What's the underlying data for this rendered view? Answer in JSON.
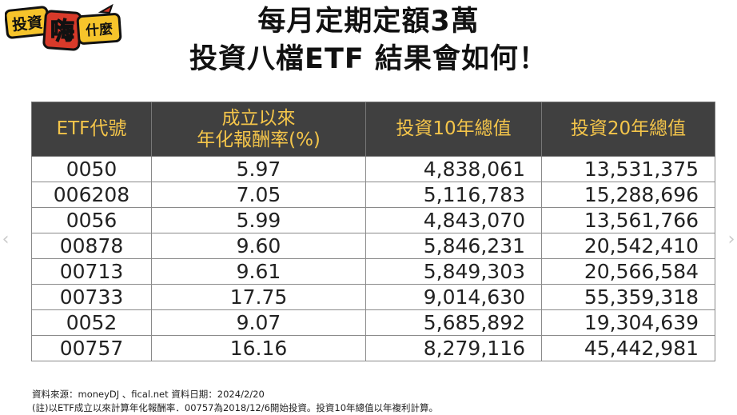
{
  "logo": {
    "line1": "投資",
    "line2": "嗨",
    "line3": "什麼"
  },
  "title": {
    "line1": "每月定期定額3萬",
    "line2": "投資八檔ETF 結果會如何！"
  },
  "table": {
    "headers": [
      "ETF代號",
      "成立以來\n年化報酬率(%)",
      "投資10年總值",
      "投資20年總值"
    ],
    "rows": [
      {
        "code": "0050",
        "rate": "5.97",
        "value10": "4,838,061",
        "value20": "13,531,375"
      },
      {
        "code": "006208",
        "rate": "7.05",
        "value10": "5,116,783",
        "value20": "15,288,696"
      },
      {
        "code": "0056",
        "rate": "5.99",
        "value10": "4,843,070",
        "value20": "13,561,766"
      },
      {
        "code": "00878",
        "rate": "9.60",
        "value10": "5,846,231",
        "value20": "20,542,410"
      },
      {
        "code": "00713",
        "rate": "9.61",
        "value10": "5,849,303",
        "value20": "20,566,584"
      },
      {
        "code": "00733",
        "rate": "17.75",
        "value10": "9,014,630",
        "value20": "55,359,318"
      },
      {
        "code": "0052",
        "rate": "9.07",
        "value10": "5,685,892",
        "value20": "19,304,639"
      },
      {
        "code": "00757",
        "rate": "16.16",
        "value10": "8,279,116",
        "value20": "45,442,981"
      }
    ]
  },
  "footnotes": {
    "source": "資料來源：moneyDJ 、fical.net  資料日期：2024/2/20",
    "note": "(註)以ETF成立以來計算年化報酬率．00757為2018/12/6開始投資。投資10年總值以年複利計算。"
  },
  "nav": {
    "left_glyph": "‹",
    "right_glyph": "›"
  },
  "colors": {
    "header_bg": "#404040",
    "header_text": "#f4c54a",
    "logo_yellow": "#f6c42b",
    "logo_red": "#d83a2a"
  }
}
